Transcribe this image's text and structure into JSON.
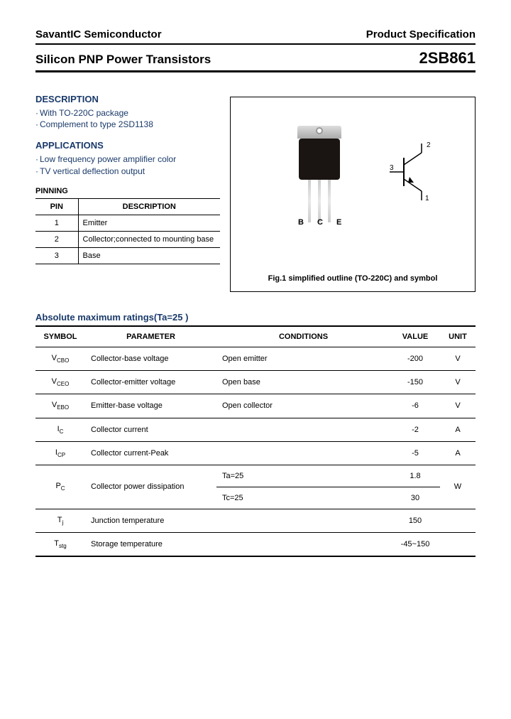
{
  "header": {
    "company": "SavantIC Semiconductor",
    "doctype": "Product Specification",
    "subtitle": "Silicon PNP Power Transistors",
    "part": "2SB861"
  },
  "description": {
    "heading": "DESCRIPTION",
    "items": [
      "With TO-220C package",
      "Complement to type 2SD1138"
    ]
  },
  "applications": {
    "heading": "APPLICATIONS",
    "items": [
      "Low frequency power amplifier color",
      "TV vertical deflection output"
    ]
  },
  "pinning": {
    "label": "PINNING",
    "headers": [
      "PIN",
      "DESCRIPTION"
    ],
    "rows": [
      {
        "pin": "1",
        "desc": "Emitter"
      },
      {
        "pin": "2",
        "desc": "Collector;connected to mounting base"
      },
      {
        "pin": "3",
        "desc": "Base"
      }
    ]
  },
  "figure": {
    "pins": "B  C  E",
    "caption": "Fig.1 simplified outline (TO-220C) and symbol",
    "sym_labels": {
      "base": "3",
      "collector": "2",
      "emitter": "1"
    }
  },
  "ratings": {
    "title": "Absolute maximum ratings(Ta=25  )",
    "headers": [
      "SYMBOL",
      "PARAMETER",
      "CONDITIONS",
      "VALUE",
      "UNIT"
    ],
    "rows": [
      {
        "sym_pre": "V",
        "sym_sub": "CBO",
        "param": "Collector-base voltage",
        "cond": "Open emitter",
        "val": "-200",
        "unit": "V"
      },
      {
        "sym_pre": "V",
        "sym_sub": "CEO",
        "param": "Collector-emitter voltage",
        "cond": "Open base",
        "val": "-150",
        "unit": "V"
      },
      {
        "sym_pre": "V",
        "sym_sub": "EBO",
        "param": "Emitter-base voltage",
        "cond": "Open collector",
        "val": "-6",
        "unit": "V"
      },
      {
        "sym_pre": "I",
        "sym_sub": "C",
        "param": "Collector current",
        "cond": "",
        "val": "-2",
        "unit": "A"
      },
      {
        "sym_pre": "I",
        "sym_sub": "CP",
        "param": "Collector current-Peak",
        "cond": "",
        "val": "-5",
        "unit": "A"
      },
      {
        "sym_pre": "P",
        "sym_sub": "C",
        "param": "Collector power dissipation",
        "cond": "",
        "val": "",
        "unit": "W",
        "split": [
          {
            "c": "Ta=25",
            "v": "1.8"
          },
          {
            "c": "Tc=25 ",
            "v": "30"
          }
        ]
      },
      {
        "sym_pre": "T",
        "sym_sub": "j",
        "param": "Junction temperature",
        "cond": "",
        "val": "150",
        "unit": " "
      },
      {
        "sym_pre": "T",
        "sym_sub": "stg",
        "param": "Storage temperature",
        "cond": "",
        "val": "-45~150",
        "unit": " "
      }
    ]
  }
}
